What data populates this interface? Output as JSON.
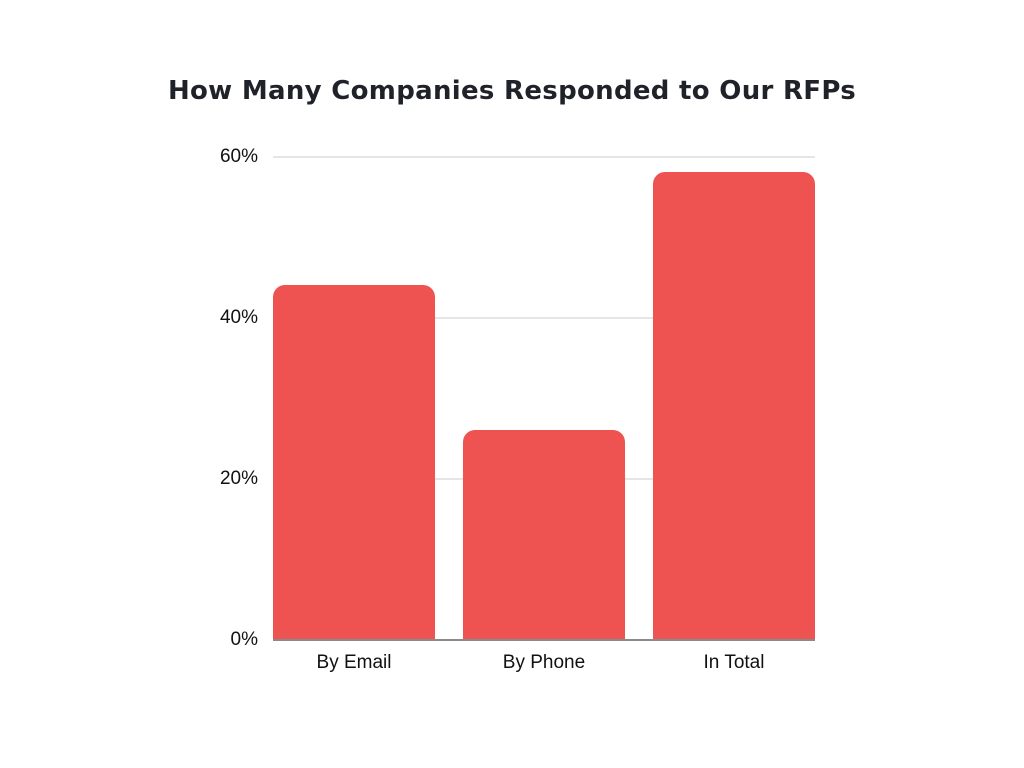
{
  "chart_data": {
    "type": "bar",
    "title": "How Many Companies Responded to Our RFPs",
    "categories": [
      "By Email",
      "By Phone",
      "In Total"
    ],
    "values": [
      44,
      26,
      58
    ],
    "value_unit": "%",
    "xlabel": "",
    "ylabel": "",
    "ylim": [
      0,
      60
    ],
    "yticks": [
      0,
      20,
      40,
      60
    ],
    "ytick_labels": [
      "0%",
      "20%",
      "40%",
      "60%"
    ],
    "grid": true,
    "legend": false,
    "colors": {
      "bar": "#ee5351",
      "gridline": "#e5e5e5",
      "axis_line": "#8a8a8a",
      "title_text": "#1f2229",
      "tick_text": "#111111",
      "background": "#ffffff"
    }
  }
}
